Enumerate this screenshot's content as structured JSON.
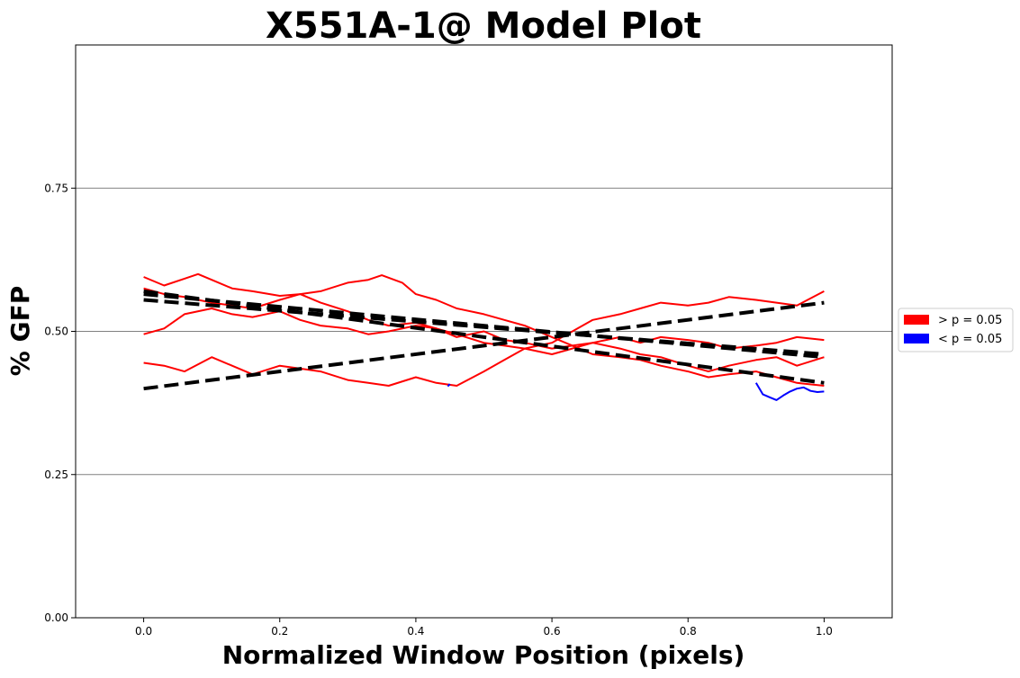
{
  "chart_data": {
    "type": "line",
    "title": "X551A-1@ Model Plot",
    "xlabel": "Normalized Window Position (pixels)",
    "ylabel": "% GFP",
    "xlim": [
      -0.1,
      1.1
    ],
    "ylim": [
      0,
      1
    ],
    "xticks": [
      0.0,
      0.2,
      0.4,
      0.6,
      0.8,
      1.0
    ],
    "xtick_labels": [
      "0.0",
      "0.2",
      "0.4",
      "0.6",
      "0.8",
      "1.0"
    ],
    "yticks": [
      0.0,
      0.25,
      0.5,
      0.75
    ],
    "ytick_labels": [
      "0.00",
      "0.25",
      "0.50",
      "0.75"
    ],
    "grid": "horizontal",
    "legend_position": "right",
    "legend": [
      {
        "label": "> p = 0.05",
        "color": "#ff0000"
      },
      {
        "label": "< p = 0.05",
        "color": "#0000ff"
      }
    ],
    "series": [
      {
        "color": "#ff0000",
        "x": [
          0.0,
          0.03,
          0.06,
          0.08,
          0.1,
          0.13,
          0.16,
          0.2,
          0.23,
          0.26,
          0.3,
          0.33,
          0.35,
          0.38,
          0.4,
          0.43,
          0.46,
          0.5,
          0.53,
          0.56,
          0.6,
          0.63,
          0.66,
          0.7,
          0.73,
          0.76,
          0.8,
          0.83,
          0.86,
          0.9,
          0.93,
          0.96,
          1.0
        ],
        "y": [
          0.595,
          0.58,
          0.592,
          0.6,
          0.59,
          0.575,
          0.57,
          0.562,
          0.565,
          0.57,
          0.585,
          0.59,
          0.598,
          0.585,
          0.565,
          0.555,
          0.54,
          0.53,
          0.52,
          0.51,
          0.49,
          0.475,
          0.46,
          0.455,
          0.45,
          0.44,
          0.43,
          0.42,
          0.425,
          0.43,
          0.42,
          0.41,
          0.405
        ]
      },
      {
        "color": "#ff0000",
        "x": [
          0.0,
          0.03,
          0.06,
          0.1,
          0.13,
          0.16,
          0.2,
          0.23,
          0.26,
          0.3,
          0.33,
          0.36,
          0.4,
          0.43,
          0.46,
          0.5,
          0.53,
          0.56,
          0.6,
          0.63,
          0.66,
          0.7,
          0.73,
          0.76,
          0.8,
          0.83,
          0.86,
          0.9,
          0.93,
          0.96,
          1.0
        ],
        "y": [
          0.575,
          0.565,
          0.56,
          0.55,
          0.545,
          0.54,
          0.555,
          0.565,
          0.55,
          0.535,
          0.52,
          0.51,
          0.515,
          0.505,
          0.49,
          0.5,
          0.485,
          0.48,
          0.47,
          0.475,
          0.48,
          0.47,
          0.46,
          0.455,
          0.44,
          0.43,
          0.44,
          0.45,
          0.455,
          0.44,
          0.455
        ]
      },
      {
        "color": "#ff0000",
        "x": [
          0.0,
          0.03,
          0.06,
          0.1,
          0.13,
          0.16,
          0.2,
          0.23,
          0.26,
          0.3,
          0.33,
          0.36,
          0.4,
          0.43,
          0.46,
          0.5,
          0.53,
          0.56,
          0.6,
          0.63,
          0.66,
          0.7,
          0.73,
          0.76,
          0.8,
          0.83,
          0.86,
          0.9,
          0.93,
          0.96,
          1.0
        ],
        "y": [
          0.495,
          0.505,
          0.53,
          0.54,
          0.53,
          0.525,
          0.535,
          0.52,
          0.51,
          0.505,
          0.495,
          0.5,
          0.51,
          0.505,
          0.495,
          0.48,
          0.475,
          0.47,
          0.46,
          0.47,
          0.48,
          0.49,
          0.48,
          0.49,
          0.485,
          0.48,
          0.47,
          0.475,
          0.48,
          0.49,
          0.485
        ]
      },
      {
        "color": "#ff0000",
        "x": [
          0.0,
          0.03,
          0.06,
          0.1,
          0.13,
          0.16,
          0.2,
          0.23,
          0.26,
          0.3,
          0.33,
          0.36,
          0.4,
          0.43,
          0.46,
          0.5,
          0.53,
          0.56,
          0.6,
          0.63,
          0.66,
          0.7,
          0.73,
          0.76,
          0.8,
          0.83,
          0.86,
          0.9,
          0.93,
          0.96,
          1.0
        ],
        "y": [
          0.445,
          0.44,
          0.43,
          0.455,
          0.44,
          0.425,
          0.44,
          0.435,
          0.43,
          0.415,
          0.41,
          0.405,
          0.42,
          0.41,
          0.405,
          0.43,
          0.45,
          0.47,
          0.48,
          0.5,
          0.52,
          0.53,
          0.54,
          0.55,
          0.545,
          0.55,
          0.56,
          0.555,
          0.55,
          0.545,
          0.57
        ]
      },
      {
        "color": "#0000ff",
        "x": [
          0.9,
          0.91,
          0.92,
          0.93,
          0.94,
          0.95,
          0.96,
          0.97,
          0.98,
          0.99,
          1.0
        ],
        "y": [
          0.41,
          0.39,
          0.385,
          0.38,
          0.388,
          0.395,
          0.4,
          0.402,
          0.396,
          0.394,
          0.395
        ]
      },
      {
        "color": "#0000ff",
        "x": [
          0.447,
          0.45
        ],
        "y": [
          0.404,
          0.408
        ]
      },
      {
        "color": "#000000",
        "dashed": true,
        "x": [
          0.0,
          1.0
        ],
        "y": [
          0.57,
          0.41
        ]
      },
      {
        "color": "#000000",
        "dashed": true,
        "x": [
          0.0,
          1.0
        ],
        "y": [
          0.565,
          0.455
        ]
      },
      {
        "color": "#000000",
        "dashed": true,
        "x": [
          0.0,
          1.0
        ],
        "y": [
          0.555,
          0.46
        ]
      },
      {
        "color": "#000000",
        "dashed": true,
        "x": [
          0.0,
          1.0
        ],
        "y": [
          0.4,
          0.55
        ]
      }
    ]
  }
}
